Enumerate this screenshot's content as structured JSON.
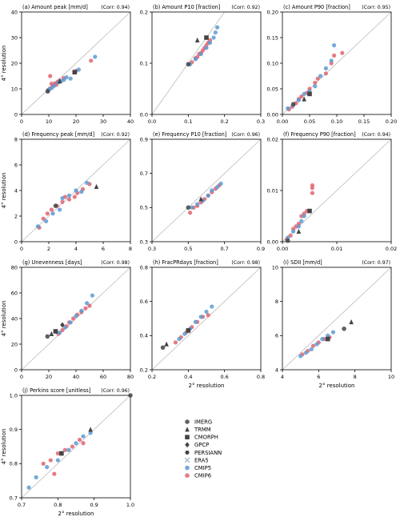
{
  "chart_data": [
    {
      "type": "scatter",
      "title": "(a) Amount peak [mm/d]",
      "corr": "(Corr: 0.94)",
      "xlim": [
        0,
        40
      ],
      "ylim": [
        0,
        40
      ],
      "xticks": [
        "0",
        "10",
        "20",
        "30",
        "40"
      ],
      "yticks": [
        "0",
        "10",
        "20",
        "30",
        "40"
      ],
      "xlabel": "",
      "ylabel": "4° resolution",
      "cmip5": [
        [
          9.6,
          9.2
        ],
        [
          10.2,
          9.8
        ],
        [
          11.2,
          10.4
        ],
        [
          12.0,
          11.2
        ],
        [
          13.5,
          12.5
        ],
        [
          14.5,
          13.0
        ],
        [
          15.5,
          13.5
        ],
        [
          16.5,
          14.5
        ],
        [
          18.0,
          14.0
        ],
        [
          21.0,
          17.5
        ],
        [
          27.0,
          22.5
        ]
      ],
      "cmip6": [
        [
          9.8,
          9.6
        ],
        [
          10.5,
          10.2
        ],
        [
          11.0,
          12.0
        ],
        [
          11.5,
          11.2
        ],
        [
          12.3,
          12.2
        ],
        [
          12.8,
          11.6
        ],
        [
          13.3,
          12.8
        ],
        [
          14.0,
          13.3
        ],
        [
          10.5,
          15.0
        ],
        [
          15.5,
          14.2
        ],
        [
          20.0,
          17.0
        ],
        [
          25.5,
          21.0
        ]
      ],
      "gray": [
        [
          9.6,
          9.0
        ],
        [
          14.0,
          13.0
        ],
        [
          19.5,
          16.5
        ]
      ]
    },
    {
      "type": "scatter",
      "title": "(b) Amount P10 [fraction]",
      "corr": "(Corr: 0.92)",
      "xlim": [
        0,
        0.3
      ],
      "ylim": [
        0,
        0.2
      ],
      "xticks": [
        "0.0",
        "0.1",
        "0.2",
        "0.3"
      ],
      "yticks": [
        "0.0",
        "0.1",
        "0.2"
      ],
      "xlabel": "",
      "ylabel": "",
      "cmip5": [
        [
          0.105,
          0.098
        ],
        [
          0.12,
          0.108
        ],
        [
          0.135,
          0.118
        ],
        [
          0.15,
          0.13
        ],
        [
          0.16,
          0.14
        ],
        [
          0.17,
          0.15
        ],
        [
          0.175,
          0.16
        ],
        [
          0.18,
          0.17
        ]
      ],
      "cmip6": [
        [
          0.11,
          0.102
        ],
        [
          0.12,
          0.11
        ],
        [
          0.125,
          0.112
        ],
        [
          0.13,
          0.118
        ],
        [
          0.135,
          0.12
        ],
        [
          0.14,
          0.125
        ],
        [
          0.145,
          0.13
        ],
        [
          0.15,
          0.135
        ],
        [
          0.155,
          0.14
        ],
        [
          0.16,
          0.145
        ]
      ],
      "gray": [
        [
          0.1,
          0.098
        ],
        [
          0.125,
          0.145
        ],
        [
          0.15,
          0.15
        ]
      ]
    },
    {
      "type": "scatter",
      "title": "(c) Amount P90 [fraction]",
      "corr": "(Corr: 0.95)",
      "xlim": [
        0,
        0.2
      ],
      "ylim": [
        0,
        0.2
      ],
      "xticks": [
        "0.00",
        "0.05",
        "0.10",
        "0.15",
        "0.20"
      ],
      "yticks": [
        "0.00",
        "0.05",
        "0.10",
        "0.15",
        "0.20"
      ],
      "xlabel": "",
      "ylabel": "",
      "cmip5": [
        [
          0.01,
          0.012
        ],
        [
          0.02,
          0.018
        ],
        [
          0.03,
          0.028
        ],
        [
          0.04,
          0.04
        ],
        [
          0.05,
          0.045
        ],
        [
          0.06,
          0.055
        ],
        [
          0.07,
          0.075
        ],
        [
          0.08,
          0.09
        ],
        [
          0.09,
          0.105
        ],
        [
          0.095,
          0.135
        ]
      ],
      "cmip6": [
        [
          0.012,
          0.01
        ],
        [
          0.018,
          0.015
        ],
        [
          0.025,
          0.022
        ],
        [
          0.03,
          0.03
        ],
        [
          0.035,
          0.035
        ],
        [
          0.045,
          0.042
        ],
        [
          0.05,
          0.05
        ],
        [
          0.06,
          0.062
        ],
        [
          0.065,
          0.07
        ],
        [
          0.08,
          0.08
        ],
        [
          0.09,
          0.1
        ],
        [
          0.095,
          0.115
        ],
        [
          0.11,
          0.12
        ]
      ],
      "gray": [
        [
          0.02,
          0.02
        ],
        [
          0.04,
          0.03
        ],
        [
          0.05,
          0.04
        ]
      ]
    },
    {
      "type": "scatter",
      "title": "(d) Frequency peak [mm/d]",
      "corr": "(Corr: 0.92)",
      "xlim": [
        0,
        8
      ],
      "ylim": [
        0,
        8
      ],
      "xticks": [
        "0",
        "2",
        "4",
        "6",
        "8"
      ],
      "yticks": [
        "0",
        "2",
        "4",
        "6",
        "8"
      ],
      "xlabel": "",
      "ylabel": "4° resolution",
      "cmip5": [
        [
          1.2,
          1.2
        ],
        [
          1.8,
          1.6
        ],
        [
          2.3,
          2.2
        ],
        [
          2.8,
          2.5
        ],
        [
          3.0,
          3.4
        ],
        [
          3.5,
          3.6
        ],
        [
          4.0,
          4.0
        ],
        [
          4.4,
          3.9
        ],
        [
          4.8,
          4.6
        ]
      ],
      "cmip6": [
        [
          1.3,
          1.1
        ],
        [
          1.6,
          1.8
        ],
        [
          1.9,
          2.2
        ],
        [
          2.2,
          2.5
        ],
        [
          2.6,
          2.8
        ],
        [
          3.0,
          3.1
        ],
        [
          3.2,
          3.5
        ],
        [
          3.5,
          3.3
        ],
        [
          3.9,
          3.5
        ],
        [
          4.1,
          3.8
        ],
        [
          4.5,
          4.1
        ],
        [
          5.0,
          4.5
        ]
      ],
      "gray": [
        [
          2.5,
          2.8
        ],
        [
          5.5,
          4.3
        ]
      ]
    },
    {
      "type": "scatter",
      "title": "(e) Frequency P10 [fraction]",
      "corr": "(Corr: 0.96)",
      "xlim": [
        0.3,
        0.9
      ],
      "ylim": [
        0.3,
        0.9
      ],
      "xticks": [
        "0.3",
        "0.5",
        "0.7",
        "0.9"
      ],
      "yticks": [
        "0.3",
        "0.5",
        "0.7",
        "0.9"
      ],
      "xlabel": "",
      "ylabel": "",
      "cmip5": [
        [
          0.52,
          0.5
        ],
        [
          0.55,
          0.52
        ],
        [
          0.58,
          0.54
        ],
        [
          0.61,
          0.57
        ],
        [
          0.63,
          0.6
        ],
        [
          0.66,
          0.62
        ],
        [
          0.68,
          0.64
        ]
      ],
      "cmip6": [
        [
          0.51,
          0.47
        ],
        [
          0.53,
          0.5
        ],
        [
          0.55,
          0.51
        ],
        [
          0.57,
          0.53
        ],
        [
          0.59,
          0.55
        ],
        [
          0.61,
          0.57
        ],
        [
          0.63,
          0.59
        ],
        [
          0.65,
          0.61
        ],
        [
          0.67,
          0.63
        ]
      ],
      "gray": [
        [
          0.5,
          0.5
        ],
        [
          0.57,
          0.55
        ]
      ]
    },
    {
      "type": "scatter",
      "title": "(f) Frequency P90 [fraction]",
      "corr": "(Corr: 0.94)",
      "xlim": [
        0,
        0.02
      ],
      "ylim": [
        0,
        0.02
      ],
      "xticks": [
        "0.00",
        "0.01",
        "0.02"
      ],
      "yticks": [
        "0.00",
        "0.01",
        "0.02"
      ],
      "xlabel": "",
      "ylabel": "",
      "cmip5": [
        [
          0.001,
          0.0008
        ],
        [
          0.002,
          0.002
        ],
        [
          0.003,
          0.003
        ],
        [
          0.0035,
          0.004
        ],
        [
          0.004,
          0.005
        ],
        [
          0.005,
          0.006
        ]
      ],
      "cmip6": [
        [
          0.0008,
          0.0005
        ],
        [
          0.0015,
          0.0012
        ],
        [
          0.002,
          0.0025
        ],
        [
          0.0025,
          0.003
        ],
        [
          0.003,
          0.0035
        ],
        [
          0.0035,
          0.005
        ],
        [
          0.004,
          0.0055
        ],
        [
          0.0045,
          0.006
        ],
        [
          0.0055,
          0.0095
        ],
        [
          0.0055,
          0.0105
        ],
        [
          0.0055,
          0.011
        ]
      ],
      "gray": [
        [
          0.001,
          0.0002
        ],
        [
          0.003,
          0.002
        ],
        [
          0.005,
          0.006
        ]
      ]
    },
    {
      "type": "scatter",
      "title": "(g) Unevenness [days]",
      "corr": "(Corr: 0.98)",
      "xlim": [
        0,
        80
      ],
      "ylim": [
        0,
        80
      ],
      "xticks": [
        "0",
        "20",
        "40",
        "60",
        "80"
      ],
      "yticks": [
        "0",
        "20",
        "40",
        "60",
        "80"
      ],
      "xlabel": "",
      "ylabel": "4° resolution",
      "cmip5": [
        [
          28,
          29
        ],
        [
          32,
          33
        ],
        [
          36,
          37
        ],
        [
          40,
          42
        ],
        [
          44,
          46
        ],
        [
          48,
          52
        ],
        [
          52,
          58
        ]
      ],
      "cmip6": [
        [
          27,
          28
        ],
        [
          30,
          31
        ],
        [
          33,
          34
        ],
        [
          35,
          37
        ],
        [
          38,
          40
        ],
        [
          41,
          43
        ],
        [
          44,
          45
        ],
        [
          47,
          48
        ],
        [
          50,
          50
        ]
      ],
      "gray": [
        [
          19,
          26
        ],
        [
          22,
          28
        ],
        [
          25,
          30
        ],
        [
          30,
          35
        ]
      ]
    },
    {
      "type": "scatter",
      "title": "(h) FracPRdays [fraction]",
      "corr": "(Corr: 0.98)",
      "xlim": [
        0.2,
        0.8
      ],
      "ylim": [
        0.2,
        0.8
      ],
      "xticks": [
        "0.2",
        "0.4",
        "0.6",
        "0.8"
      ],
      "yticks": [
        "0.2",
        "0.4",
        "0.6",
        "0.8"
      ],
      "xlabel": "2° resolution",
      "ylabel": "",
      "cmip5": [
        [
          0.35,
          0.38
        ],
        [
          0.38,
          0.41
        ],
        [
          0.41,
          0.44
        ],
        [
          0.44,
          0.48
        ],
        [
          0.47,
          0.51
        ],
        [
          0.5,
          0.54
        ],
        [
          0.53,
          0.57
        ]
      ],
      "cmip6": [
        [
          0.33,
          0.36
        ],
        [
          0.36,
          0.39
        ],
        [
          0.39,
          0.42
        ],
        [
          0.42,
          0.45
        ],
        [
          0.45,
          0.48
        ],
        [
          0.48,
          0.51
        ],
        [
          0.51,
          0.52
        ]
      ],
      "gray": [
        [
          0.26,
          0.33
        ],
        [
          0.28,
          0.35
        ],
        [
          0.4,
          0.43
        ]
      ]
    },
    {
      "type": "scatter",
      "title": "(i) SDII [mm/d]",
      "corr": "(Corr: 0.97)",
      "xlim": [
        4,
        10
      ],
      "ylim": [
        4,
        10
      ],
      "xticks": [
        "4",
        "6",
        "8",
        "10"
      ],
      "yticks": [
        "4",
        "6",
        "8",
        "10"
      ],
      "xlabel": "2° resolution",
      "ylabel": "",
      "cmip5": [
        [
          5.0,
          4.8
        ],
        [
          5.3,
          5.0
        ],
        [
          5.6,
          5.2
        ],
        [
          5.9,
          5.5
        ],
        [
          6.2,
          5.8
        ],
        [
          6.5,
          6.0
        ],
        [
          6.8,
          6.2
        ]
      ],
      "cmip6": [
        [
          5.1,
          4.9
        ],
        [
          5.4,
          5.1
        ],
        [
          5.7,
          5.4
        ],
        [
          6.0,
          5.6
        ],
        [
          6.3,
          5.8
        ],
        [
          6.6,
          5.9
        ]
      ],
      "gray": [
        [
          7.4,
          6.4
        ],
        [
          7.8,
          6.8
        ],
        [
          6.5,
          5.8
        ]
      ]
    },
    {
      "type": "scatter",
      "title": "(j) Perkins score [unitless]",
      "corr": "(Corr: 0.96)",
      "xlim": [
        0.7,
        1.0
      ],
      "ylim": [
        0.7,
        1.0
      ],
      "xticks": [
        "0.7",
        "0.8",
        "0.9",
        "1.0"
      ],
      "yticks": [
        "0.7",
        "0.8",
        "0.9",
        "1.0"
      ],
      "xlabel": "2° resolution",
      "ylabel": "4° resolution",
      "cmip5": [
        [
          0.72,
          0.73
        ],
        [
          0.74,
          0.76
        ],
        [
          0.77,
          0.79
        ],
        [
          0.8,
          0.81
        ],
        [
          0.83,
          0.84
        ],
        [
          0.85,
          0.86
        ],
        [
          0.87,
          0.88
        ],
        [
          0.89,
          0.89
        ]
      ],
      "cmip6": [
        [
          0.76,
          0.8
        ],
        [
          0.78,
          0.81
        ],
        [
          0.8,
          0.83
        ],
        [
          0.82,
          0.84
        ],
        [
          0.84,
          0.85
        ],
        [
          0.86,
          0.87
        ],
        [
          0.87,
          0.86
        ],
        [
          0.79,
          0.77
        ]
      ],
      "gray": [
        [
          1.0,
          1.0
        ],
        [
          0.89,
          0.9
        ],
        [
          0.81,
          0.83
        ]
      ]
    }
  ],
  "legend": {
    "position": "center",
    "entries": [
      {
        "label": "IMERG",
        "marker": "circle",
        "color": "#444444"
      },
      {
        "label": "TRMM",
        "marker": "triangle",
        "color": "#444444"
      },
      {
        "label": "CMORPH",
        "marker": "square",
        "color": "#444444"
      },
      {
        "label": "GPCP",
        "marker": "diamond",
        "color": "#444444"
      },
      {
        "label": "PERSIANN",
        "marker": "hexagon",
        "color": "#444444"
      },
      {
        "label": "ERA5",
        "marker": "x",
        "color": "#9db5cc"
      },
      {
        "label": "CMIP5",
        "marker": "circle",
        "color": "#5a9bd4"
      },
      {
        "label": "CMIP6",
        "marker": "circle",
        "color": "#e06470"
      }
    ]
  },
  "colors": {
    "cmip5": "#5a9bd4",
    "cmip6": "#e06470",
    "obs": "#444444",
    "diagonal": "#bbbbbb"
  }
}
